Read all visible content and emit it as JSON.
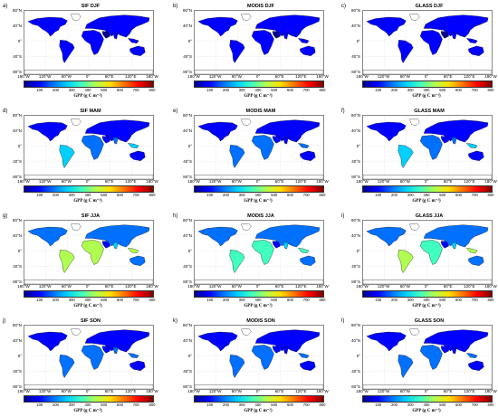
{
  "figure": {
    "panels": [
      {
        "letter": "a)",
        "title": "SIF DJF",
        "product": "SIF",
        "season": "DJF",
        "level": 0.08
      },
      {
        "letter": "b)",
        "title": "MODIS DJF",
        "product": "MODIS",
        "season": "DJF",
        "level": 0.07
      },
      {
        "letter": "c)",
        "title": "GLASS DJF",
        "product": "GLASS",
        "season": "DJF",
        "level": 0.08
      },
      {
        "letter": "d)",
        "title": "SIF MAM",
        "product": "SIF",
        "season": "MAM",
        "level": 0.25
      },
      {
        "letter": "e)",
        "title": "MODIS MAM",
        "product": "MODIS",
        "season": "MAM",
        "level": 0.18
      },
      {
        "letter": "f)",
        "title": "GLASS MAM",
        "product": "GLASS",
        "season": "MAM",
        "level": 0.24
      },
      {
        "letter": "g)",
        "title": "SIF JJA",
        "product": "SIF",
        "season": "JJA",
        "level": 0.55
      },
      {
        "letter": "h)",
        "title": "MODIS JJA",
        "product": "MODIS",
        "season": "JJA",
        "level": 0.42
      },
      {
        "letter": "i)",
        "title": "GLASS JJA",
        "product": "GLASS",
        "season": "JJA",
        "level": 0.52
      },
      {
        "letter": "j)",
        "title": "SIF SON",
        "product": "SIF",
        "season": "SON",
        "level": 0.2
      },
      {
        "letter": "k)",
        "title": "MODIS SON",
        "product": "MODIS",
        "season": "SON",
        "level": 0.14
      },
      {
        "letter": "l)",
        "title": "GLASS SON",
        "product": "GLASS",
        "season": "SON",
        "level": 0.19
      }
    ],
    "latitude_ticks": [
      "80°N",
      "40°N",
      "0°",
      "40°S",
      "80°S"
    ],
    "longitude_ticks": [
      "180°W",
      "120°W",
      "60°W",
      "0°",
      "60°E",
      "120°E",
      "180°W"
    ],
    "colorbar": {
      "ticks": [
        "100",
        "200",
        "300",
        "400",
        "500",
        "600",
        "700",
        "800"
      ],
      "label": "GPP (g C m⁻²)",
      "range": [
        0,
        800
      ],
      "colors": [
        "#00008f",
        "#0000ff",
        "#0070ff",
        "#00d0ff",
        "#40ffbf",
        "#b0ff50",
        "#ffe000",
        "#ff7000",
        "#ff0000",
        "#800000"
      ]
    }
  }
}
